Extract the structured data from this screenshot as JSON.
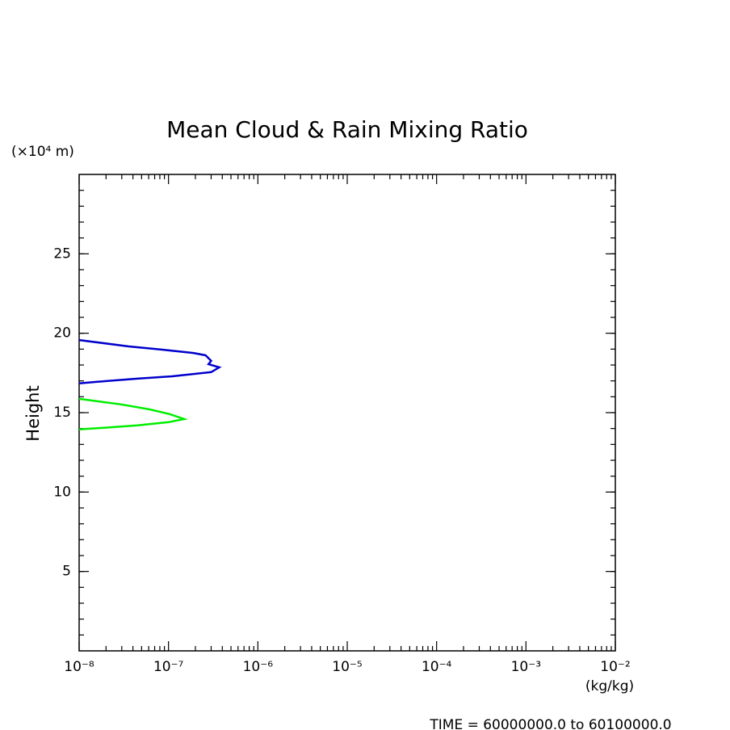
{
  "chart_data": {
    "type": "line",
    "title": "Mean Cloud & Rain Mixing Ratio",
    "y_label": "Height",
    "y_unit": "(×10⁴ m)",
    "x_unit": "(kg/kg)",
    "footer": "TIME = 60000000.0 to 60100000.0",
    "x_log": true,
    "xlim": [
      1e-08,
      0.01
    ],
    "xticks": [
      {
        "value": 1e-08,
        "label": "10⁻⁸"
      },
      {
        "value": 1e-07,
        "label": "10⁻⁷"
      },
      {
        "value": 1e-06,
        "label": "10⁻⁶"
      },
      {
        "value": 1e-05,
        "label": "10⁻⁵"
      },
      {
        "value": 0.0001,
        "label": "10⁻⁴"
      },
      {
        "value": 0.001,
        "label": "10⁻³"
      },
      {
        "value": 0.01,
        "label": "10⁻²"
      }
    ],
    "ylim": [
      0,
      30
    ],
    "yticks": [
      5,
      10,
      15,
      20,
      25
    ],
    "series": [
      {
        "color": "#0000cc",
        "x": [
          1e-08,
          3.6e-08,
          8.3e-08,
          1.9e-07,
          2.6e-07,
          3e-07,
          2.8e-07,
          3.7e-07,
          3e-07,
          1.1e-07,
          4.5e-08,
          1.6e-08,
          1e-08
        ],
        "y": [
          19.57,
          19.17,
          18.97,
          18.76,
          18.61,
          18.26,
          18.05,
          17.85,
          17.55,
          17.29,
          17.14,
          16.94,
          16.84
        ]
      },
      {
        "color": "#00ee00",
        "x": [
          1e-08,
          2.95e-08,
          6.1e-08,
          1.03e-07,
          1.5e-07,
          1e-07,
          4.5e-08,
          1.9e-08,
          1e-08
        ],
        "y": [
          15.87,
          15.52,
          15.21,
          14.91,
          14.6,
          14.4,
          14.2,
          14.05,
          13.95
        ]
      }
    ]
  }
}
